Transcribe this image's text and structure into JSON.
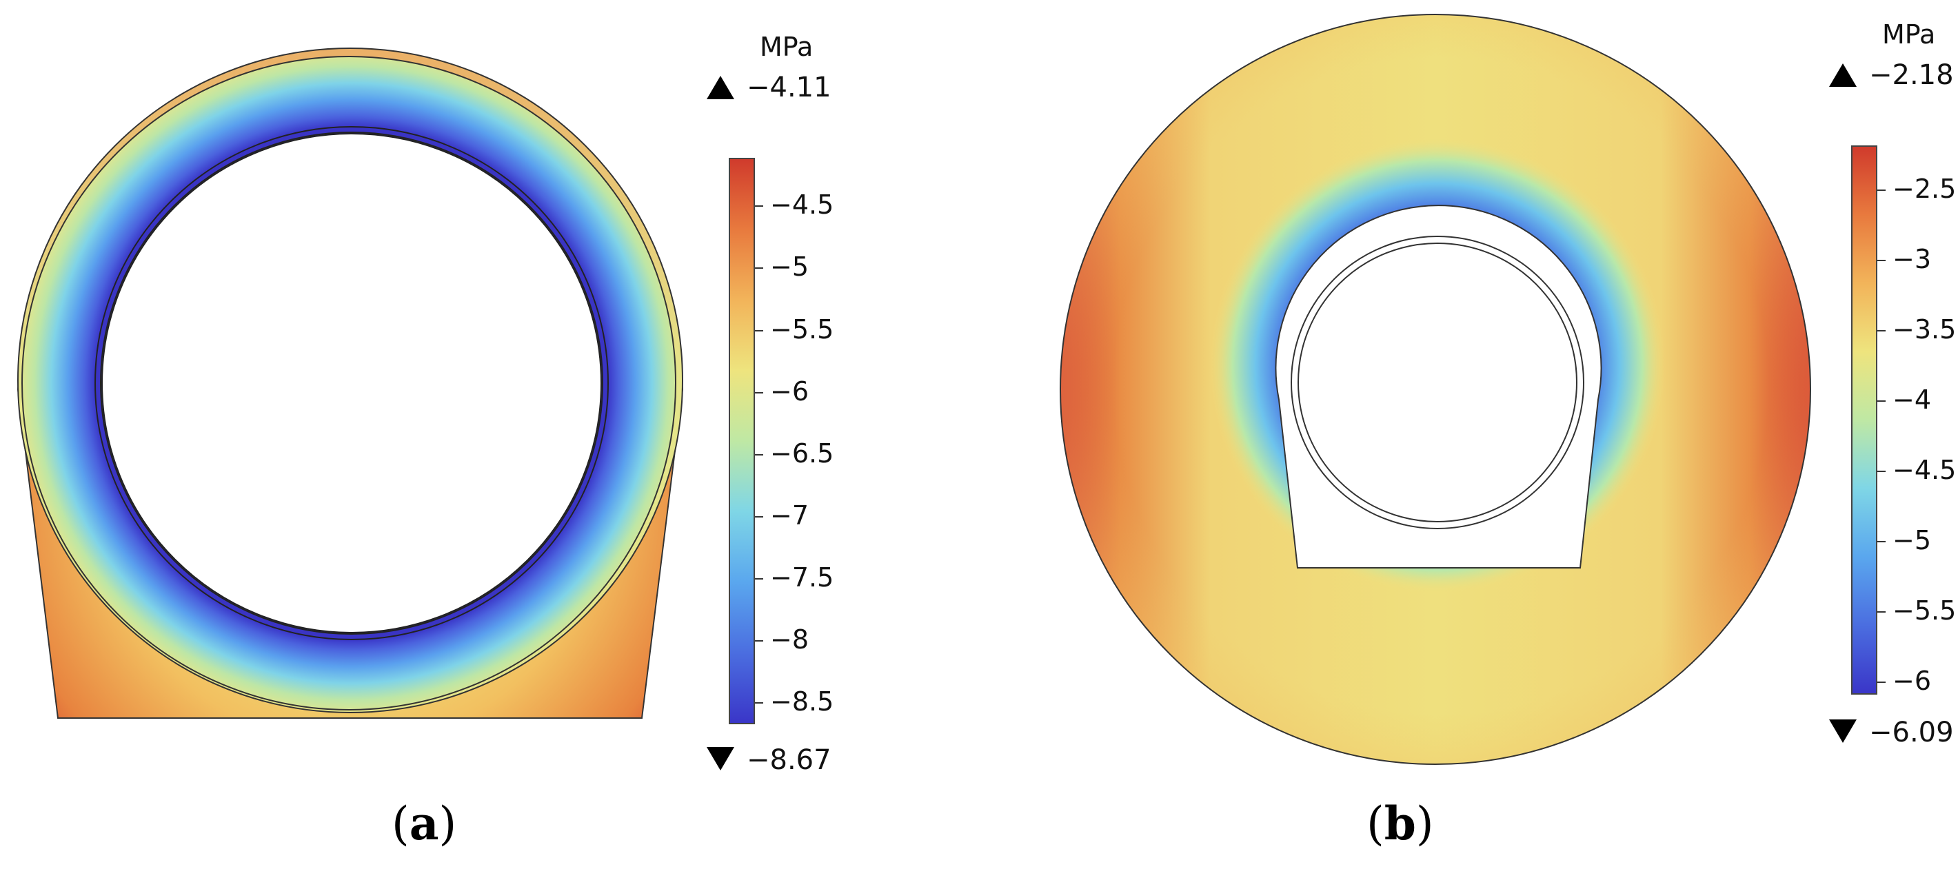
{
  "panel_a": {
    "unit": "MPa",
    "max_label": "−4.11",
    "min_label": "−8.67",
    "colorbar_ticks": [
      "−4.5",
      "−5",
      "−5.5",
      "−6",
      "−6.5",
      "−7",
      "−7.5",
      "−8",
      "−8.5"
    ],
    "tick_values": [
      -4.5,
      -5,
      -5.5,
      -6,
      -6.5,
      -7,
      -7.5,
      -8,
      -8.5
    ],
    "range": [
      -8.67,
      -4.11
    ],
    "caption_open": "(",
    "caption_letter": "a",
    "caption_close": ")"
  },
  "panel_b": {
    "unit": "MPa",
    "max_label": "−2.18",
    "min_label": "−6.09",
    "colorbar_ticks": [
      "−2.5",
      "−3",
      "−3.5",
      "−4",
      "−4.5",
      "−5",
      "−5.5",
      "−6"
    ],
    "tick_values": [
      -2.5,
      -3,
      -3.5,
      -4,
      -4.5,
      -5,
      -5.5,
      -6
    ],
    "range": [
      -6.09,
      -2.18
    ],
    "caption_open": "(",
    "caption_letter": "b",
    "caption_close": ")"
  },
  "colormap": [
    "#3a36c8",
    "#4b6ee0",
    "#5aa7ee",
    "#7fd6e6",
    "#bfe8a4",
    "#eee47e",
    "#f2b45a",
    "#e87a3e",
    "#d03b2c"
  ]
}
